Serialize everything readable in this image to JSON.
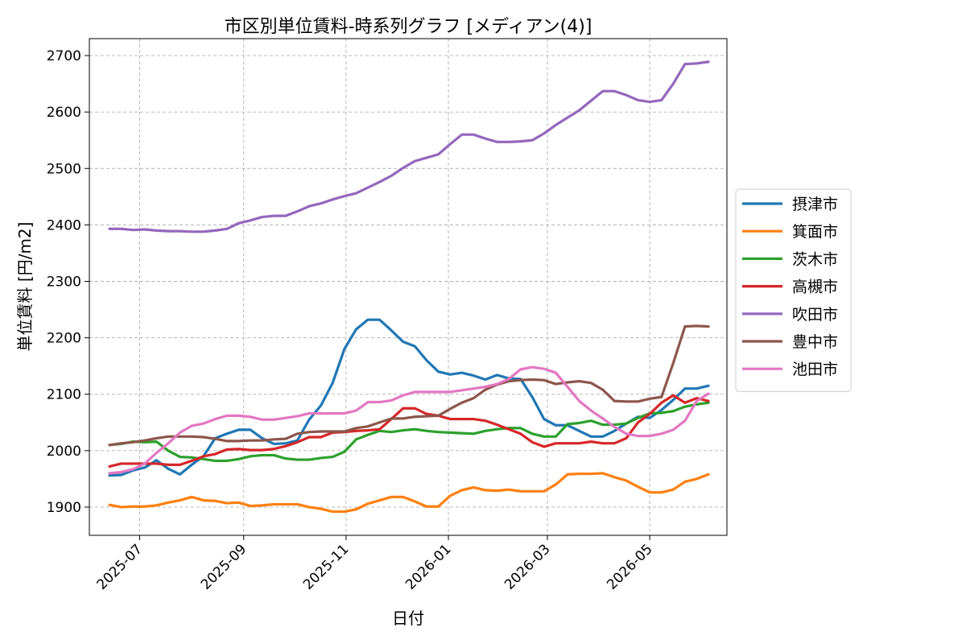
{
  "chart_data": {
    "type": "line",
    "title": "市区別単位賃料-時系列グラフ [メディアン(4)]",
    "xlabel": "日付",
    "ylabel": "単位賃料 [円/m2]",
    "x_axis_type": "date",
    "xlim": [
      "2025-06-01",
      "2026-06-16"
    ],
    "ylim": [
      1850,
      2730
    ],
    "x_ticks": [
      "2025-07-01",
      "2025-09-01",
      "2025-11-01",
      "2026-01-01",
      "2026-03-01",
      "2026-05-01"
    ],
    "x_tick_labels": [
      "2025-07",
      "2025-09",
      "2025-11",
      "2026-01",
      "2026-03",
      "2026-05"
    ],
    "y_ticks": [
      1900,
      2000,
      2100,
      2200,
      2300,
      2400,
      2500,
      2600,
      2700
    ],
    "y_tick_labels": [
      "1900",
      "2000",
      "2100",
      "2200",
      "2300",
      "2400",
      "2500",
      "2600",
      "2700"
    ],
    "grid": true,
    "legend_position": "outside-right",
    "x": [
      "2025-06-13",
      "2025-06-20",
      "2025-06-27",
      "2025-07-04",
      "2025-07-11",
      "2025-07-18",
      "2025-07-25",
      "2025-08-01",
      "2025-08-08",
      "2025-08-15",
      "2025-08-22",
      "2025-08-29",
      "2025-09-05",
      "2025-09-12",
      "2025-09-19",
      "2025-09-26",
      "2025-10-03",
      "2025-10-10",
      "2025-10-17",
      "2025-10-24",
      "2025-10-31",
      "2025-11-07",
      "2025-11-14",
      "2025-11-21",
      "2025-11-28",
      "2025-12-05",
      "2025-12-12",
      "2025-12-19",
      "2025-12-26",
      "2026-01-02",
      "2026-01-09",
      "2026-01-16",
      "2026-01-23",
      "2026-01-30",
      "2026-02-06",
      "2026-02-13",
      "2026-02-20",
      "2026-02-27",
      "2026-03-06",
      "2026-03-13",
      "2026-03-20",
      "2026-03-27",
      "2026-04-03",
      "2026-04-10",
      "2026-04-17",
      "2026-04-24",
      "2026-05-01",
      "2026-05-08",
      "2026-05-15",
      "2026-05-22",
      "2026-05-29",
      "2026-06-05"
    ],
    "series": [
      {
        "name": "摂津市",
        "color": "#1f77b4",
        "values": [
          1956,
          1957,
          1965,
          1970,
          1983,
          1968,
          1958,
          1975,
          1990,
          2022,
          2030,
          2037,
          2037,
          2022,
          2012,
          2013,
          2018,
          2055,
          2080,
          2120,
          2180,
          2215,
          2232,
          2232,
          2213,
          2193,
          2185,
          2160,
          2140,
          2135,
          2138,
          2133,
          2126,
          2134,
          2128,
          2127,
          2095,
          2056,
          2045,
          2045,
          2035,
          2025,
          2025,
          2035,
          2048,
          2060,
          2058,
          2072,
          2090,
          2110,
          2110,
          2115
        ]
      },
      {
        "name": "箕面市",
        "color": "#ff7f0e",
        "values": [
          1904,
          1900,
          1901,
          1901,
          1903,
          1908,
          1912,
          1918,
          1912,
          1911,
          1907,
          1908,
          1902,
          1903,
          1905,
          1905,
          1905,
          1900,
          1897,
          1892,
          1892,
          1896,
          1906,
          1912,
          1918,
          1918,
          1910,
          1901,
          1901,
          1920,
          1930,
          1935,
          1930,
          1929,
          1931,
          1928,
          1928,
          1928,
          1940,
          1958,
          1959,
          1959,
          1960,
          1953,
          1947,
          1936,
          1926,
          1926,
          1931,
          1945,
          1950,
          1958
        ]
      },
      {
        "name": "茨木市",
        "color": "#2ca02c",
        "values": [
          2010,
          2012,
          2016,
          2015,
          2016,
          2000,
          1989,
          1988,
          1985,
          1982,
          1982,
          1985,
          1990,
          1992,
          1992,
          1986,
          1984,
          1984,
          1987,
          1989,
          1998,
          2020,
          2028,
          2035,
          2033,
          2036,
          2038,
          2035,
          2033,
          2032,
          2031,
          2030,
          2035,
          2038,
          2040,
          2040,
          2030,
          2025,
          2025,
          2047,
          2049,
          2053,
          2046,
          2046,
          2048,
          2058,
          2066,
          2067,
          2070,
          2078,
          2082,
          2085
        ]
      },
      {
        "name": "高槻市",
        "color": "#d62728",
        "values": [
          1972,
          1977,
          1977,
          1977,
          1977,
          1975,
          1975,
          1982,
          1990,
          1994,
          2002,
          2003,
          2001,
          2001,
          2003,
          2008,
          2015,
          2024,
          2024,
          2032,
          2033,
          2035,
          2036,
          2038,
          2056,
          2075,
          2075,
          2065,
          2062,
          2056,
          2056,
          2056,
          2053,
          2046,
          2038,
          2030,
          2015,
          2007,
          2013,
          2013,
          2013,
          2016,
          2013,
          2013,
          2022,
          2050,
          2065,
          2085,
          2098,
          2085,
          2093,
          2088
        ]
      },
      {
        "name": "吹田市",
        "color": "#9467bd",
        "values": [
          2393,
          2393,
          2391,
          2392,
          2390,
          2389,
          2389,
          2388,
          2388,
          2390,
          2393,
          2403,
          2408,
          2414,
          2416,
          2416,
          2424,
          2433,
          2438,
          2445,
          2451,
          2456,
          2466,
          2476,
          2487,
          2501,
          2513,
          2519,
          2525,
          2543,
          2560,
          2560,
          2553,
          2547,
          2547,
          2548,
          2550,
          2562,
          2577,
          2590,
          2603,
          2620,
          2637,
          2637,
          2630,
          2621,
          2618,
          2621,
          2650,
          2685,
          2686,
          2689
        ]
      },
      {
        "name": "豊中市",
        "color": "#8c564b",
        "values": [
          2010,
          2013,
          2015,
          2018,
          2022,
          2025,
          2025,
          2025,
          2024,
          2021,
          2017,
          2017,
          2018,
          2018,
          2020,
          2021,
          2030,
          2033,
          2034,
          2034,
          2034,
          2040,
          2043,
          2050,
          2057,
          2057,
          2060,
          2061,
          2062,
          2074,
          2085,
          2093,
          2108,
          2117,
          2123,
          2125,
          2126,
          2125,
          2118,
          2121,
          2123,
          2120,
          2108,
          2088,
          2087,
          2087,
          2092,
          2095,
          2155,
          2220,
          2221,
          2220
        ]
      },
      {
        "name": "池田市",
        "color": "#e377c2",
        "values": [
          1960,
          1962,
          1967,
          1977,
          1996,
          2013,
          2032,
          2044,
          2048,
          2056,
          2062,
          2062,
          2060,
          2055,
          2055,
          2058,
          2061,
          2066,
          2066,
          2066,
          2066,
          2071,
          2086,
          2086,
          2089,
          2098,
          2104,
          2104,
          2104,
          2104,
          2107,
          2110,
          2113,
          2118,
          2127,
          2144,
          2148,
          2145,
          2138,
          2113,
          2088,
          2071,
          2057,
          2042,
          2030,
          2026,
          2026,
          2030,
          2037,
          2053,
          2088,
          2101
        ]
      }
    ]
  }
}
